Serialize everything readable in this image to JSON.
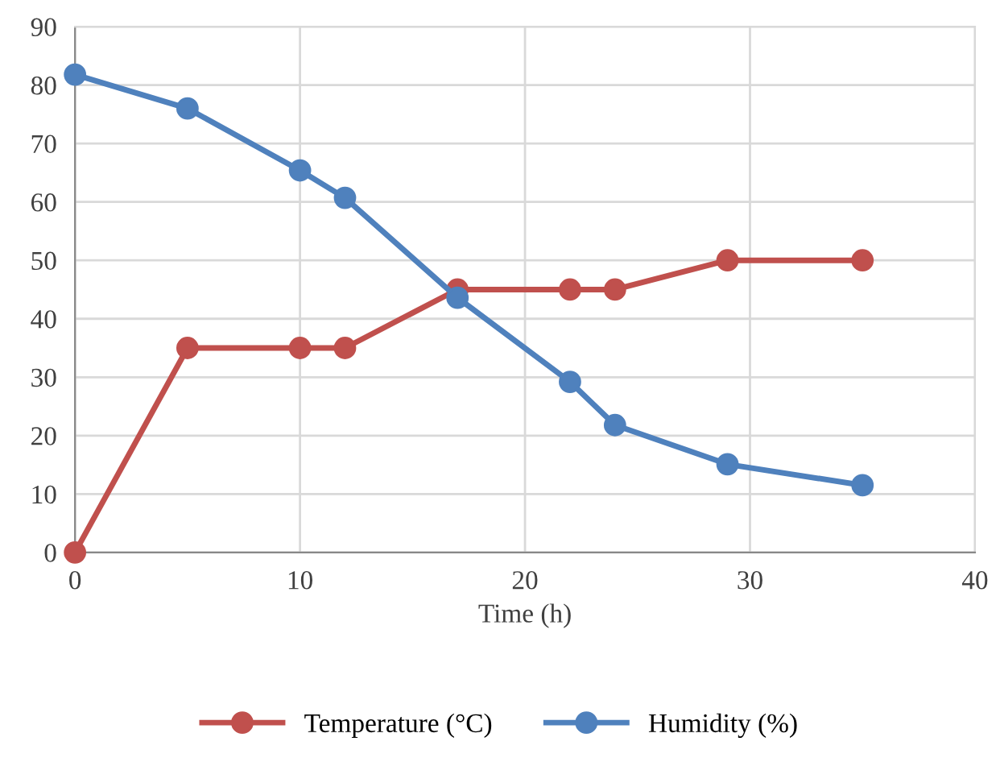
{
  "chart_data": {
    "type": "line",
    "xlabel": "Time (h)",
    "x": [
      0,
      5,
      10,
      12,
      17,
      22,
      24,
      29,
      35
    ],
    "series": [
      {
        "name": "Temperature (°C)",
        "color": "#c0504d",
        "values": [
          0,
          35,
          35,
          35,
          45,
          45,
          45,
          50,
          50
        ]
      },
      {
        "name": "Humidity (%)",
        "color": "#4f81bd",
        "values": [
          81.8,
          76,
          65.4,
          60.7,
          43.6,
          29.2,
          21.8,
          15.1,
          11.5
        ]
      }
    ],
    "xlim": [
      0,
      40
    ],
    "xticks": [
      0,
      10,
      20,
      30,
      40
    ],
    "ylim": [
      0,
      90
    ],
    "yticks": [
      0,
      10,
      20,
      30,
      40,
      50,
      60,
      70,
      80,
      90
    ],
    "grid": true,
    "legend": "bottom",
    "marker": "circle",
    "line_style": "solid"
  }
}
